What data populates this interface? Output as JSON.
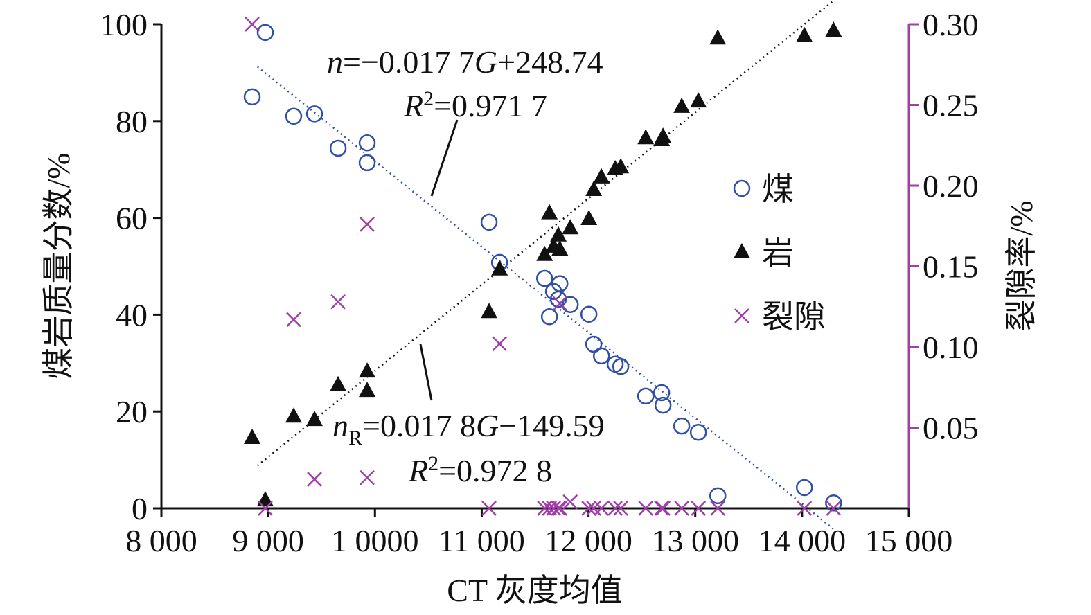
{
  "chart_data": {
    "type": "scatter",
    "xlabel": "CT 灰度均值",
    "ylabel": "煤岩质量分数/%",
    "y2label": "裂隙率/%",
    "xlim": [
      8000,
      15000
    ],
    "xticks": [
      {
        "value": 8000,
        "label": "8 000"
      },
      {
        "value": 9000,
        "label": "9 000"
      },
      {
        "value": 10000,
        "label": "1 0000"
      },
      {
        "value": 11000,
        "label": "11 000"
      },
      {
        "value": 12000,
        "label": "12 000"
      },
      {
        "value": 13000,
        "label": "13 000"
      },
      {
        "value": 14000,
        "label": "14 000"
      },
      {
        "value": 15000,
        "label": "15 000"
      }
    ],
    "ylim": [
      0,
      100
    ],
    "yticks": [
      0,
      20,
      40,
      60,
      80,
      100
    ],
    "y2lim": [
      0,
      0.3
    ],
    "y2ticks": [
      {
        "value": 0.05,
        "label": "0.05"
      },
      {
        "value": 0.1,
        "label": "0.10"
      },
      {
        "value": 0.15,
        "label": "0.15"
      },
      {
        "value": 0.2,
        "label": "0.20"
      },
      {
        "value": 0.25,
        "label": "0.25"
      },
      {
        "value": 0.3,
        "label": "0.30"
      }
    ],
    "y2color": "#a03fa8",
    "series": [
      {
        "name": "煤",
        "color": "#2f4fa8",
        "marker": "circle",
        "x": [
          8973,
          8850,
          9239,
          9434,
          9655,
          9927,
          9927,
          11069,
          11167,
          11589,
          11673,
          11732,
          11718,
          11829,
          11634,
          12004,
          12049,
          12121,
          12250,
          12302,
          12536,
          12685,
          12698,
          12873,
          13029,
          13211,
          14022,
          14295
        ],
        "values": [
          98.3,
          85.0,
          81.0,
          81.5,
          74.4,
          75.5,
          71.4,
          59.1,
          50.8,
          47.5,
          44.8,
          46.4,
          43.2,
          42.1,
          39.6,
          40.1,
          33.9,
          31.5,
          29.8,
          29.3,
          23.2,
          23.9,
          21.3,
          17.0,
          15.7,
          2.6,
          4.3,
          1.1
        ]
      },
      {
        "name": "岩",
        "color": "#111111",
        "marker": "triangle",
        "x": [
          8973,
          8850,
          9239,
          9434,
          9655,
          9927,
          9927,
          11069,
          11167,
          11589,
          11634,
          11673,
          11718,
          11732,
          11829,
          12004,
          12049,
          12121,
          12250,
          12302,
          12536,
          12685,
          12698,
          12873,
          13029,
          13211,
          14022,
          14295
        ],
        "values": [
          1.7,
          14.6,
          19.0,
          18.3,
          25.5,
          28.3,
          24.3,
          40.6,
          49.4,
          52.4,
          61.0,
          54.1,
          56.4,
          53.5,
          57.9,
          59.8,
          65.8,
          68.4,
          70.1,
          70.5,
          76.5,
          76.1,
          76.8,
          83.0,
          84.1,
          97.1,
          97.6,
          98.7
        ]
      },
      {
        "name": "裂隙",
        "color": "#a03fa8",
        "marker": "cross",
        "axis": "y2",
        "x": [
          8850,
          8973,
          9239,
          9434,
          9655,
          9927,
          9927,
          11069,
          11167,
          11589,
          11634,
          11673,
          11718,
          11732,
          11732,
          11829,
          12004,
          12049,
          12121,
          12250,
          12302,
          12536,
          12685,
          12698,
          12873,
          13029,
          13211,
          14022,
          14295
        ],
        "values": [
          0.3,
          0,
          0.117,
          0.018,
          0.128,
          0.176,
          0.019,
          0,
          0.102,
          0,
          0,
          0,
          0,
          0,
          0.127,
          0.004,
          0,
          0,
          0,
          0,
          0,
          0,
          0,
          0,
          0,
          0,
          0,
          0,
          0
        ]
      }
    ],
    "fits": [
      {
        "color": "#2f4fa8",
        "slope": -0.0177,
        "intercept": 248.74,
        "equation": [
          "n",
          "=−0.017 7",
          "G",
          "+248.74"
        ],
        "r2": [
          "R",
          "2",
          "=0.971 7"
        ]
      },
      {
        "color": "#111111",
        "slope": 0.0178,
        "intercept": -149.59,
        "equation": [
          "n",
          "R",
          "=0.017 8",
          "G",
          "−149.59"
        ],
        "r2": [
          "R",
          "2",
          "=0.972 8"
        ]
      }
    ]
  }
}
